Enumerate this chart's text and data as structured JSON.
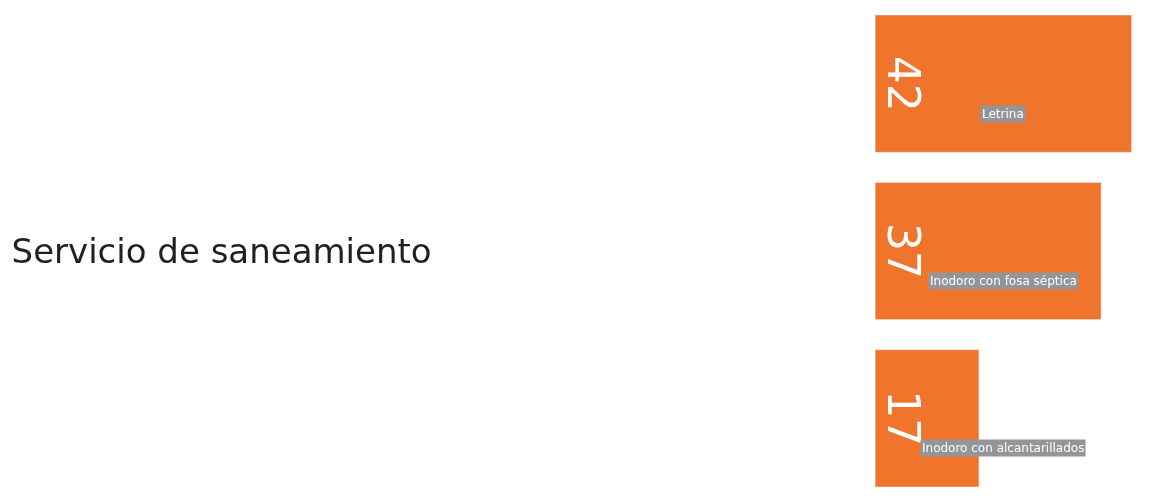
{
  "chart_data": {
    "type": "bar",
    "orientation": "horizontal",
    "title": "Servicio de saneamiento",
    "categories": [
      "Letrina",
      "Inodoro con fosa séptica",
      "Inodoro con alcantarillados"
    ],
    "values": [
      42,
      37,
      17
    ],
    "color": "#f0742b",
    "data_labels": true,
    "legend": false,
    "tick_labels": false
  }
}
